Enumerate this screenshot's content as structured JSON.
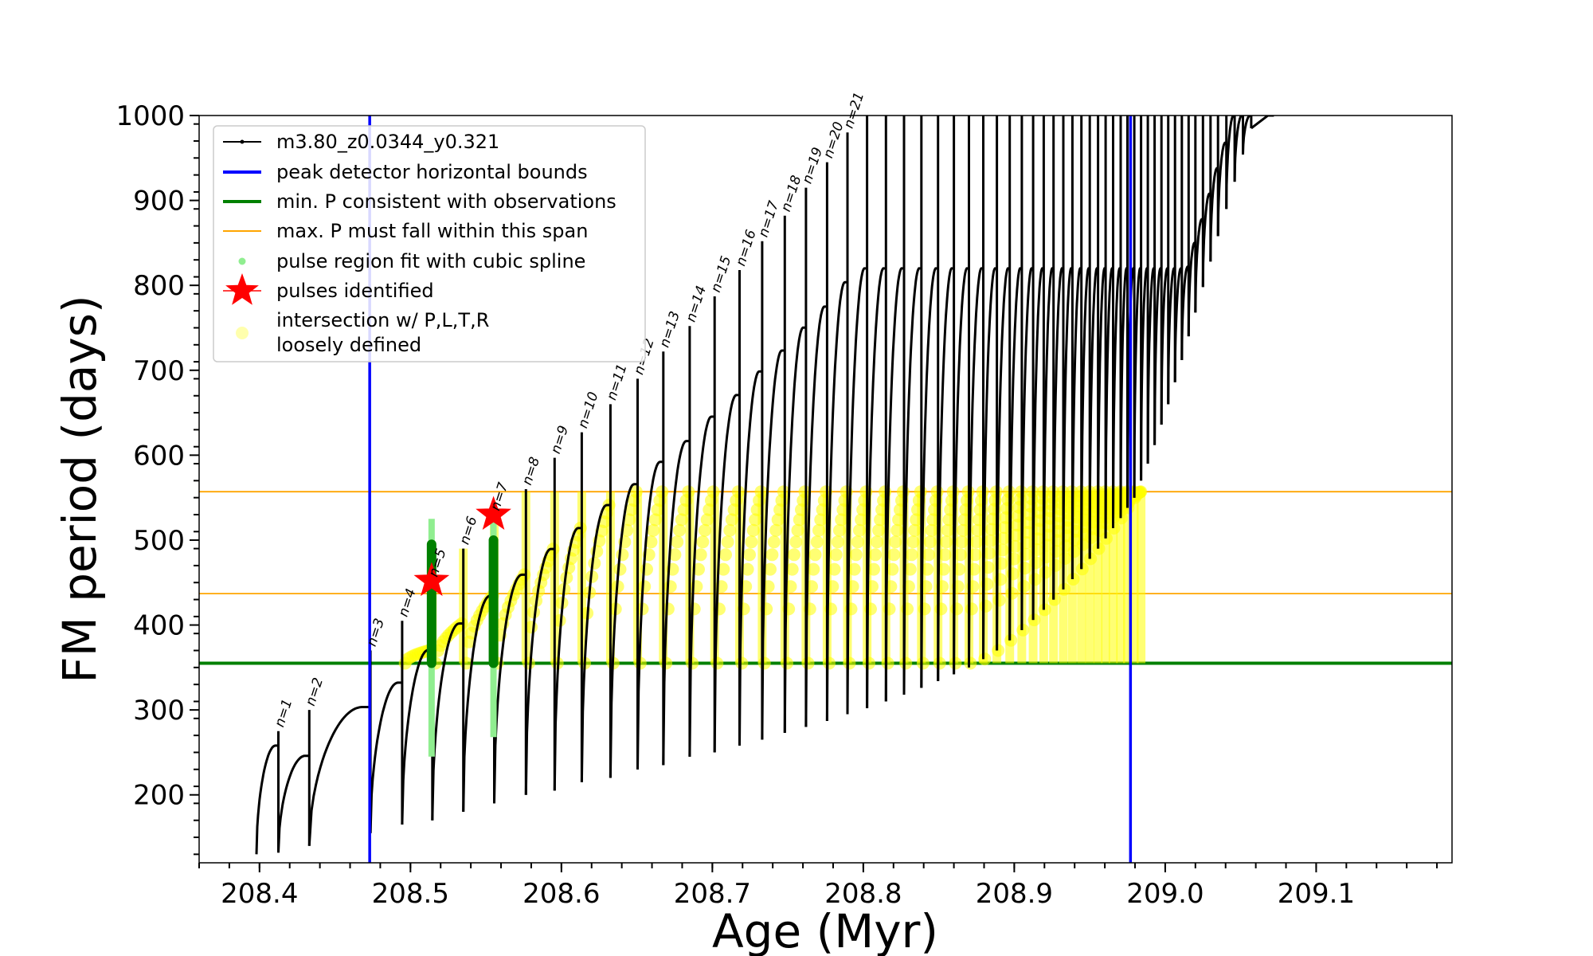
{
  "chart_data": {
    "type": "line",
    "title": "",
    "xlabel": "Age (Myr)",
    "ylabel": "FM period (days)",
    "xlim": [
      208.36,
      209.19
    ],
    "ylim": [
      120,
      1000
    ],
    "x_ticks": [
      208.4,
      208.5,
      208.6,
      208.7,
      208.8,
      208.9,
      209.0,
      209.1
    ],
    "x_tick_labels": [
      "208.4",
      "208.5",
      "208.6",
      "208.7",
      "208.8",
      "208.9",
      "209.0",
      "209.1"
    ],
    "y_ticks": [
      200,
      300,
      400,
      500,
      600,
      700,
      800,
      900,
      1000
    ],
    "y_tick_labels": [
      "200",
      "300",
      "400",
      "500",
      "600",
      "700",
      "800",
      "900",
      "1000"
    ],
    "grid": false,
    "legend_position": "top-left",
    "colors": {
      "track": "#000000",
      "bounds": "#0000ff",
      "min_p": "#008000",
      "max_p": "#ffa500",
      "spline": "#90ee90",
      "spline_dark": "#008000",
      "pulses": "#ff0000",
      "intersection": "#ffff00"
    },
    "legend": [
      {
        "label": "m3.80_z0.0344_y0.321",
        "kind": "line-marker",
        "color": "#000000"
      },
      {
        "label": "peak detector horizontal bounds",
        "kind": "line",
        "color": "#0000ff"
      },
      {
        "label": "min. P consistent with observations",
        "kind": "line",
        "color": "#008000"
      },
      {
        "label": "max. P must fall within this span",
        "kind": "thin-line",
        "color": "#ffa500"
      },
      {
        "label": "pulse region fit with cubic spline",
        "kind": "dot",
        "color": "#90ee90"
      },
      {
        "label": "pulses identified",
        "kind": "star",
        "color": "#ff0000"
      },
      {
        "label": "intersection w/ P,L,T,R",
        "label2": "loosely defined",
        "kind": "circle",
        "color": "#ffff99"
      }
    ],
    "vertical_lines": [
      208.473,
      208.977
    ],
    "min_period_line": 355,
    "max_period_span": [
      437,
      557
    ],
    "pulses_identified": [
      {
        "x": 208.514,
        "y": 452
      },
      {
        "x": 208.555,
        "y": 530
      }
    ],
    "pulse_spline_regions": [
      {
        "x": 208.514,
        "y_min": 245,
        "y_max": 525
      },
      {
        "x": 208.555,
        "y_min": 268,
        "y_max": 530
      }
    ],
    "track_start": {
      "x": 208.398,
      "y_start": 130,
      "y_peak": 258
    },
    "pulses": [
      {
        "n": "n=1",
        "x": 208.4125,
        "peak": 275,
        "min": 132
      },
      {
        "n": "n=2",
        "x": 208.433,
        "peak": 300,
        "min": 140
      },
      {
        "n": "n=3",
        "x": 208.4735,
        "peak": 370,
        "min": 155
      },
      {
        "n": "n=4",
        "x": 208.4945,
        "peak": 405,
        "min": 165
      },
      {
        "n": "n=5",
        "x": 208.5145,
        "peak": 452,
        "min": 170
      },
      {
        "n": "n=6",
        "x": 208.535,
        "peak": 490,
        "min": 180
      },
      {
        "n": "n=7",
        "x": 208.5555,
        "peak": 530,
        "min": 190
      },
      {
        "n": "n=8",
        "x": 208.5765,
        "peak": 560,
        "min": 200
      },
      {
        "n": "n=9",
        "x": 208.5955,
        "peak": 597,
        "min": 205
      },
      {
        "n": "n=10",
        "x": 208.6135,
        "peak": 627,
        "min": 215
      },
      {
        "n": "n=11",
        "x": 208.6325,
        "peak": 660,
        "min": 220
      },
      {
        "n": "n=12",
        "x": 208.6505,
        "peak": 690,
        "min": 230
      },
      {
        "n": "n=13",
        "x": 208.6675,
        "peak": 722,
        "min": 235
      },
      {
        "n": "n=14",
        "x": 208.685,
        "peak": 752,
        "min": 245
      },
      {
        "n": "n=15",
        "x": 208.7015,
        "peak": 787,
        "min": 250
      },
      {
        "n": "n=16",
        "x": 208.718,
        "peak": 818,
        "min": 258
      },
      {
        "n": "n=17",
        "x": 208.733,
        "peak": 852,
        "min": 265
      },
      {
        "n": "n=18",
        "x": 208.748,
        "peak": 882,
        "min": 273
      },
      {
        "n": "n=19",
        "x": 208.762,
        "peak": 915,
        "min": 280
      },
      {
        "n": "n=20",
        "x": 208.776,
        "peak": 945,
        "min": 287
      },
      {
        "n": "n=21",
        "x": 208.7895,
        "peak": 980,
        "min": 295
      },
      {
        "n": "",
        "x": 208.8025,
        "peak": 1000,
        "min": 302
      },
      {
        "n": "",
        "x": 208.815,
        "peak": 1000,
        "min": 310
      },
      {
        "n": "",
        "x": 208.827,
        "peak": 1000,
        "min": 318
      },
      {
        "n": "",
        "x": 208.8385,
        "peak": 1000,
        "min": 326
      },
      {
        "n": "",
        "x": 208.8495,
        "peak": 1000,
        "min": 334
      },
      {
        "n": "",
        "x": 208.86,
        "peak": 1000,
        "min": 342
      },
      {
        "n": "",
        "x": 208.87,
        "peak": 1000,
        "min": 350
      },
      {
        "n": "",
        "x": 208.8795,
        "peak": 1000,
        "min": 360
      },
      {
        "n": "",
        "x": 208.8885,
        "peak": 1000,
        "min": 370
      },
      {
        "n": "",
        "x": 208.897,
        "peak": 1000,
        "min": 382
      },
      {
        "n": "",
        "x": 208.905,
        "peak": 1000,
        "min": 394
      },
      {
        "n": "",
        "x": 208.9125,
        "peak": 1000,
        "min": 406
      },
      {
        "n": "",
        "x": 208.9195,
        "peak": 1000,
        "min": 418
      },
      {
        "n": "",
        "x": 208.926,
        "peak": 1000,
        "min": 430
      },
      {
        "n": "",
        "x": 208.9325,
        "peak": 1000,
        "min": 442
      },
      {
        "n": "",
        "x": 208.9385,
        "peak": 1000,
        "min": 454
      },
      {
        "n": "",
        "x": 208.9445,
        "peak": 1000,
        "min": 466
      },
      {
        "n": "",
        "x": 208.95,
        "peak": 1000,
        "min": 478
      },
      {
        "n": "",
        "x": 208.9555,
        "peak": 1000,
        "min": 490
      },
      {
        "n": "",
        "x": 208.9605,
        "peak": 1000,
        "min": 502
      },
      {
        "n": "",
        "x": 208.9655,
        "peak": 1000,
        "min": 514
      },
      {
        "n": "",
        "x": 208.9705,
        "peak": 1000,
        "min": 526
      },
      {
        "n": "",
        "x": 208.975,
        "peak": 1000,
        "min": 538
      },
      {
        "n": "",
        "x": 208.9795,
        "peak": 1000,
        "min": 550
      },
      {
        "n": "",
        "x": 208.984,
        "peak": 1000,
        "min": 570
      },
      {
        "n": "",
        "x": 208.9885,
        "peak": 1000,
        "min": 590
      },
      {
        "n": "",
        "x": 208.993,
        "peak": 1000,
        "min": 612
      },
      {
        "n": "",
        "x": 208.9975,
        "peak": 1000,
        "min": 636
      },
      {
        "n": "",
        "x": 209.002,
        "peak": 1000,
        "min": 660
      },
      {
        "n": "",
        "x": 209.0065,
        "peak": 1000,
        "min": 686
      },
      {
        "n": "",
        "x": 209.011,
        "peak": 1000,
        "min": 712
      },
      {
        "n": "",
        "x": 209.0155,
        "peak": 1000,
        "min": 740
      },
      {
        "n": "",
        "x": 209.02,
        "peak": 1000,
        "min": 768
      },
      {
        "n": "",
        "x": 209.025,
        "peak": 1000,
        "min": 798
      },
      {
        "n": "",
        "x": 209.03,
        "peak": 1000,
        "min": 828
      },
      {
        "n": "",
        "x": 209.035,
        "peak": 1000,
        "min": 858
      },
      {
        "n": "",
        "x": 209.0405,
        "peak": 1000,
        "min": 890
      },
      {
        "n": "",
        "x": 209.046,
        "peak": 1000,
        "min": 922
      },
      {
        "n": "",
        "x": 209.0515,
        "peak": 1000,
        "min": 954
      },
      {
        "n": "",
        "x": 209.057,
        "peak": 1000,
        "min": 985
      }
    ]
  }
}
